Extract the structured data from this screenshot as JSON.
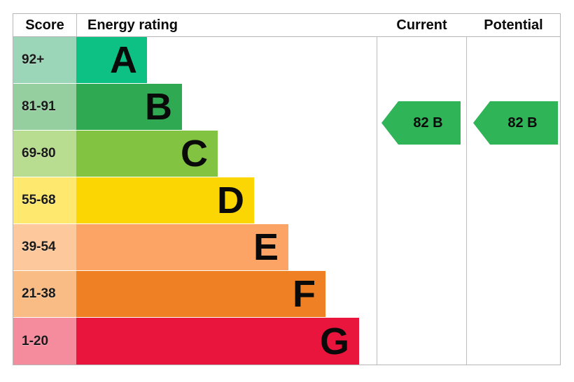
{
  "chart_data": {
    "type": "bar",
    "title": "Energy rating",
    "columns": [
      "Score",
      "Energy rating",
      "Current",
      "Potential"
    ],
    "bands": [
      {
        "letter": "A",
        "score": "92+",
        "bar_color": "#0cc183",
        "score_bg": "#9bd6b9",
        "width_pct": 23.5
      },
      {
        "letter": "B",
        "score": "81-91",
        "bar_color": "#2fa952",
        "score_bg": "#95cfa0",
        "width_pct": 35.3
      },
      {
        "letter": "C",
        "score": "69-80",
        "bar_color": "#82c341",
        "score_bg": "#b9dd90",
        "width_pct": 47.0
      },
      {
        "letter": "D",
        "score": "55-68",
        "bar_color": "#fcd603",
        "score_bg": "#fee96e",
        "width_pct": 59.1
      },
      {
        "letter": "E",
        "score": "39-54",
        "bar_color": "#fba465",
        "score_bg": "#fdc99c",
        "width_pct": 70.7
      },
      {
        "letter": "F",
        "score": "21-38",
        "bar_color": "#ef8023",
        "score_bg": "#f8bc84",
        "width_pct": 83.0
      },
      {
        "letter": "G",
        "score": "1-20",
        "bar_color": "#e9153c",
        "score_bg": "#f48c9e",
        "width_pct": 94.2
      }
    ],
    "current": {
      "label": "82 B",
      "value": 82,
      "band": "B",
      "arrow_color": "#2fb457"
    },
    "potential": {
      "label": "82 B",
      "value": 82,
      "band": "B",
      "arrow_color": "#2fb457"
    },
    "layout": {
      "legend": "none",
      "grid": "column-dividers"
    }
  }
}
